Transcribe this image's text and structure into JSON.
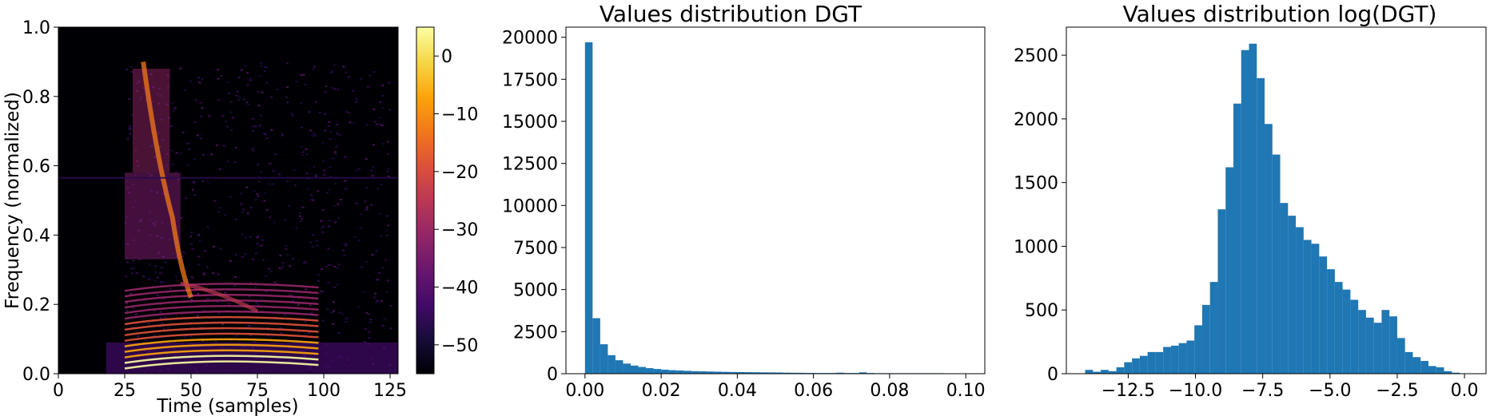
{
  "chart_data": [
    {
      "type": "heatmap",
      "title": "",
      "xlabel": "Time (samples)",
      "ylabel": "Frequency (normalized)",
      "xlim": [
        0,
        128
      ],
      "ylim": [
        0,
        1
      ],
      "xticks": [
        0,
        25,
        50,
        75,
        100,
        125
      ],
      "xtick_labels": [
        "0",
        "25",
        "50",
        "75",
        "100",
        "125"
      ],
      "yticks": [
        0,
        0.2,
        0.4,
        0.6,
        0.8,
        1.0
      ],
      "ytick_labels": [
        "0.0",
        "0.2",
        "0.4",
        "0.6",
        "0.8",
        "1.0"
      ],
      "colormap": "inferno",
      "colorbar": {
        "range": [
          -55,
          5
        ],
        "ticks": [
          0,
          -10,
          -20,
          -30,
          -40,
          -50
        ],
        "tick_labels": [
          "0",
          "−10",
          "−20",
          "−30",
          "−40",
          "−50"
        ]
      }
    },
    {
      "type": "bar",
      "title": "Values distribution DGT",
      "xlabel": "",
      "ylabel": "",
      "xlim": [
        -0.005,
        0.105
      ],
      "ylim": [
        0,
        20600
      ],
      "color": "#1f77b4",
      "bin_width": 0.002,
      "bin_starts": [
        0.0,
        0.002,
        0.004,
        0.006,
        0.008,
        0.01,
        0.012,
        0.014,
        0.016,
        0.018,
        0.02,
        0.022,
        0.024,
        0.026,
        0.028,
        0.03,
        0.032,
        0.034,
        0.036,
        0.038,
        0.04,
        0.042,
        0.044,
        0.046,
        0.048,
        0.05,
        0.052,
        0.054,
        0.056,
        0.058,
        0.06,
        0.062,
        0.064,
        0.066,
        0.068,
        0.07,
        0.072,
        0.074,
        0.076,
        0.078,
        0.08,
        0.082,
        0.084,
        0.086,
        0.088,
        0.09,
        0.092,
        0.094,
        0.096,
        0.098
      ],
      "values": [
        19700,
        3300,
        1750,
        1100,
        800,
        600,
        480,
        400,
        330,
        280,
        240,
        210,
        190,
        170,
        150,
        140,
        130,
        120,
        110,
        100,
        95,
        90,
        85,
        80,
        75,
        70,
        60,
        55,
        50,
        45,
        40,
        40,
        40,
        60,
        40,
        40,
        80,
        40,
        30,
        30,
        30,
        30,
        30,
        30,
        30,
        30,
        30,
        20,
        20,
        20
      ],
      "xticks": [
        0.0,
        0.02,
        0.04,
        0.06,
        0.08,
        0.1
      ],
      "xtick_labels": [
        "0.00",
        "0.02",
        "0.04",
        "0.06",
        "0.08",
        "0.10"
      ],
      "yticks": [
        0,
        2500,
        5000,
        7500,
        10000,
        12500,
        15000,
        17500,
        20000
      ],
      "ytick_labels": [
        "0",
        "2500",
        "5000",
        "7500",
        "10000",
        "12500",
        "15000",
        "17500",
        "20000"
      ]
    },
    {
      "type": "bar",
      "title": "Values distribution log(DGT)",
      "xlabel": "",
      "ylabel": "",
      "xlim": [
        -14.8,
        0.8
      ],
      "ylim": [
        0,
        2720
      ],
      "color": "#1f77b4",
      "bin_width": 0.29,
      "bin_starts": [
        -14.1,
        -13.81,
        -13.52,
        -13.23,
        -12.94,
        -12.65,
        -12.36,
        -12.07,
        -11.78,
        -11.49,
        -11.2,
        -10.91,
        -10.62,
        -10.33,
        -10.04,
        -9.75,
        -9.46,
        -9.17,
        -8.88,
        -8.59,
        -8.3,
        -8.01,
        -7.72,
        -7.43,
        -7.14,
        -6.85,
        -6.56,
        -6.27,
        -5.98,
        -5.69,
        -5.4,
        -5.11,
        -4.82,
        -4.53,
        -4.24,
        -3.95,
        -3.66,
        -3.37,
        -3.08,
        -2.79,
        -2.5,
        -2.21,
        -1.92,
        -1.63,
        -1.34,
        -1.05,
        -0.76,
        -0.47,
        -0.18
      ],
      "values": [
        30,
        15,
        30,
        20,
        50,
        90,
        120,
        140,
        170,
        170,
        210,
        220,
        240,
        260,
        380,
        540,
        720,
        1290,
        1620,
        2120,
        2540,
        2590,
        2320,
        1960,
        1720,
        1340,
        1240,
        1150,
        1050,
        1020,
        920,
        820,
        720,
        660,
        580,
        500,
        440,
        400,
        500,
        450,
        280,
        170,
        130,
        100,
        60,
        50,
        20,
        8,
        3
      ],
      "xticks": [
        -12.5,
        -10.0,
        -7.5,
        -5.0,
        -2.5,
        0.0
      ],
      "xtick_labels": [
        "−12.5",
        "−10.0",
        "−7.5",
        "−5.0",
        "−2.5",
        "0.0"
      ],
      "yticks": [
        0,
        500,
        1000,
        1500,
        2000,
        2500
      ],
      "ytick_labels": [
        "0",
        "500",
        "1000",
        "1500",
        "2000",
        "2500"
      ]
    }
  ]
}
